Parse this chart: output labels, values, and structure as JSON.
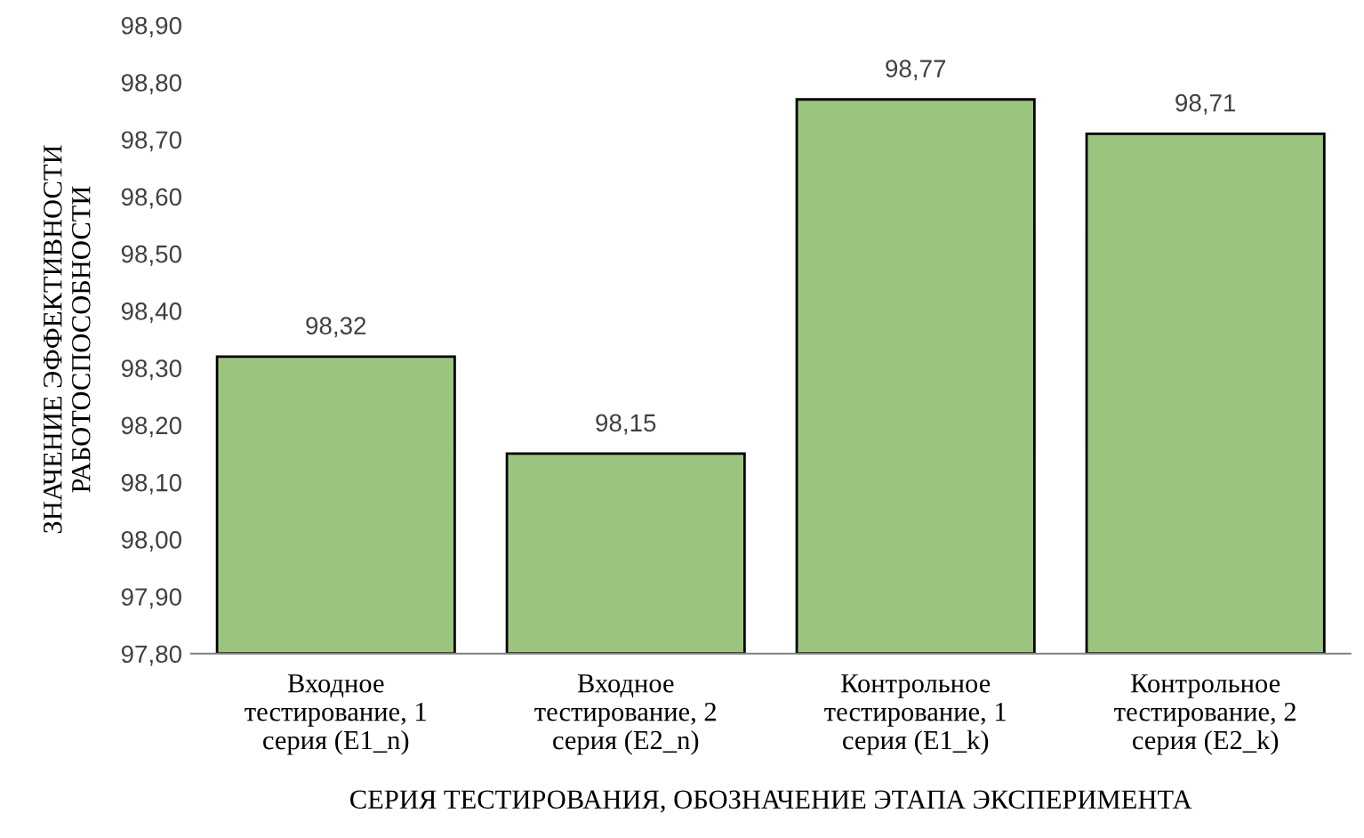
{
  "chart_data": {
    "type": "bar",
    "xlabel": "СЕРИЯ ТЕСТИРОВАНИЯ, ОБОЗНАЧЕНИЕ ЭТАПА ЭКСПЕРИМЕНТА",
    "ylabel": "ЗНАЧЕНИЕ ЭФФЕКТИВНОСТИ\nРАБОТОСПОСОБНОСТИ",
    "categories": [
      "Входное\nтестирование, 1\nсерия (E1_n)",
      "Входное\nтестирование, 2\nсерия (E2_n)",
      "Контрольное\nтестирование, 1\nсерия (E1_k)",
      "Контрольное\nтестирование, 2\nсерия (E2_k)"
    ],
    "values": [
      98.32,
      98.15,
      98.77,
      98.71
    ],
    "value_labels": [
      "98,32",
      "98,15",
      "98,77",
      "98,71"
    ],
    "color": "#9bc57e",
    "ylim": [
      97.8,
      98.9
    ],
    "yticks": [
      {
        "value": 97.8,
        "label": "97,80"
      },
      {
        "value": 97.9,
        "label": "97,90"
      },
      {
        "value": 98.0,
        "label": "98,00"
      },
      {
        "value": 98.1,
        "label": "98,10"
      },
      {
        "value": 98.2,
        "label": "98,20"
      },
      {
        "value": 98.3,
        "label": "98,30"
      },
      {
        "value": 98.4,
        "label": "98,40"
      },
      {
        "value": 98.5,
        "label": "98,50"
      },
      {
        "value": 98.6,
        "label": "98,60"
      },
      {
        "value": 98.7,
        "label": "98,70"
      },
      {
        "value": 98.8,
        "label": "98,80"
      },
      {
        "value": 98.9,
        "label": "98,90"
      }
    ],
    "grid": false,
    "legend": false
  }
}
